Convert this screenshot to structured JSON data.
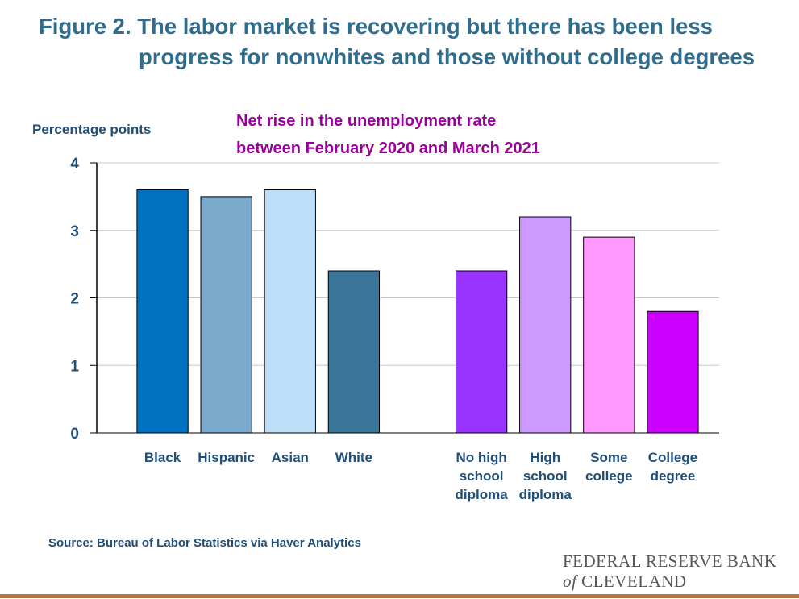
{
  "header": {
    "title_line1": "Figure 2. The labor market is recovering but there has been less",
    "title_line2": "progress for nonwhites and those without college degrees"
  },
  "chart_data": {
    "type": "bar",
    "subtitle_line1": "Net rise in the unemployment rate",
    "subtitle_line2": "between February 2020 and March 2021",
    "ylabel": "Percentage points",
    "ylim": [
      0,
      4
    ],
    "yticks": [
      0,
      1,
      2,
      3,
      4
    ],
    "grid": true,
    "groups": [
      {
        "categories": [
          [
            "Black"
          ],
          [
            "Hispanic"
          ],
          [
            "Asian"
          ],
          [
            "White"
          ]
        ],
        "values": [
          3.6,
          3.5,
          3.6,
          2.4
        ],
        "colors": [
          "#0070c0",
          "#7aa9cc",
          "#bcdef7",
          "#3b7499"
        ]
      },
      {
        "categories": [
          [
            "No high",
            "school",
            "diploma"
          ],
          [
            "High",
            "school",
            "diploma"
          ],
          [
            "Some",
            "college"
          ],
          [
            "College",
            "degree"
          ]
        ],
        "values": [
          2.4,
          3.2,
          2.9,
          1.8
        ],
        "colors": [
          "#9933ff",
          "#cc99ff",
          "#ff99ff",
          "#cc00ff"
        ]
      }
    ]
  },
  "footer": {
    "source": "Source: Bureau of Labor Statistics via Haver Analytics",
    "logo_line1": "FEDERAL RESERVE BANK",
    "logo_of": "of",
    "logo_line2": "CLEVELAND"
  }
}
